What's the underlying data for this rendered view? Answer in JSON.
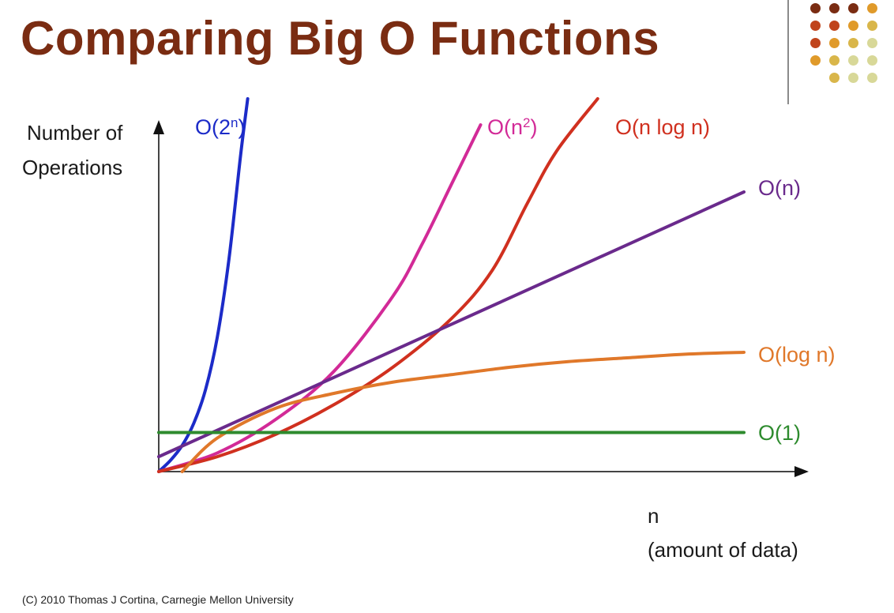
{
  "slide": {
    "title": "Comparing Big O Functions",
    "footer": "(C) 2010 Thomas J Cortina, Carnegie Mellon University",
    "decoration_dot_colors": [
      "#7a2c12",
      "#c0441c",
      "#e09a2a",
      "#d9b64a",
      "#d8d898"
    ]
  },
  "chart_data": {
    "type": "line",
    "title": "Comparing Big O Functions",
    "ylabel": "Number of Operations",
    "xlabel": "n (amount of data)",
    "xlabel_lines": [
      "n",
      "(amount of data)"
    ],
    "ylabel_lines": [
      "Number of",
      "Operations"
    ],
    "xlim": [
      0,
      100
    ],
    "ylim": [
      0,
      100
    ],
    "grid": false,
    "legend": "inline labels at line ends",
    "series": [
      {
        "name": "O(2ⁿ)",
        "label_base": "O(2",
        "label_sup": "n",
        "label_tail": ")",
        "color": "#1c2bc8",
        "points": [
          [
            0,
            0
          ],
          [
            2,
            3
          ],
          [
            4,
            7
          ],
          [
            6,
            13
          ],
          [
            8,
            22
          ],
          [
            10,
            36
          ],
          [
            12,
            57
          ],
          [
            14,
            85
          ],
          [
            15.2,
            100
          ]
        ]
      },
      {
        "name": "O(n²)",
        "label_base": "O(n",
        "label_sup": "2",
        "label_tail": ")",
        "color": "#d22a97",
        "points": [
          [
            0,
            0
          ],
          [
            10,
            5
          ],
          [
            20,
            14
          ],
          [
            30,
            27
          ],
          [
            40,
            47
          ],
          [
            45,
            61
          ],
          [
            50,
            77
          ],
          [
            55,
            93
          ]
        ]
      },
      {
        "name": "O(n log n)",
        "label_base": "O(n log n)",
        "label_sup": "",
        "label_tail": "",
        "color": "#d0301f",
        "points": [
          [
            0,
            0
          ],
          [
            10,
            4
          ],
          [
            20,
            10
          ],
          [
            30,
            18
          ],
          [
            40,
            28
          ],
          [
            50,
            41
          ],
          [
            57,
            54
          ],
          [
            63,
            72
          ],
          [
            68,
            86
          ],
          [
            75,
            100
          ]
        ]
      },
      {
        "name": "O(n)",
        "label_base": "O(n)",
        "label_sup": "",
        "label_tail": "",
        "color": "#6a2a8c",
        "points": [
          [
            0,
            4
          ],
          [
            100,
            75
          ]
        ]
      },
      {
        "name": "O(log n)",
        "label_base": "O(log n)",
        "label_sup": "",
        "label_tail": "",
        "color": "#e0782a",
        "points": [
          [
            4,
            0
          ],
          [
            10,
            9
          ],
          [
            20,
            17
          ],
          [
            30,
            21
          ],
          [
            40,
            24
          ],
          [
            50,
            26
          ],
          [
            60,
            28
          ],
          [
            70,
            29.5
          ],
          [
            80,
            30.5
          ],
          [
            90,
            31.5
          ],
          [
            100,
            32
          ]
        ]
      },
      {
        "name": "O(1)",
        "label_base": "O(1)",
        "label_sup": "",
        "label_tail": "",
        "color": "#2e8b2e",
        "points": [
          [
            0,
            10.5
          ],
          [
            100,
            10.5
          ]
        ]
      }
    ]
  }
}
